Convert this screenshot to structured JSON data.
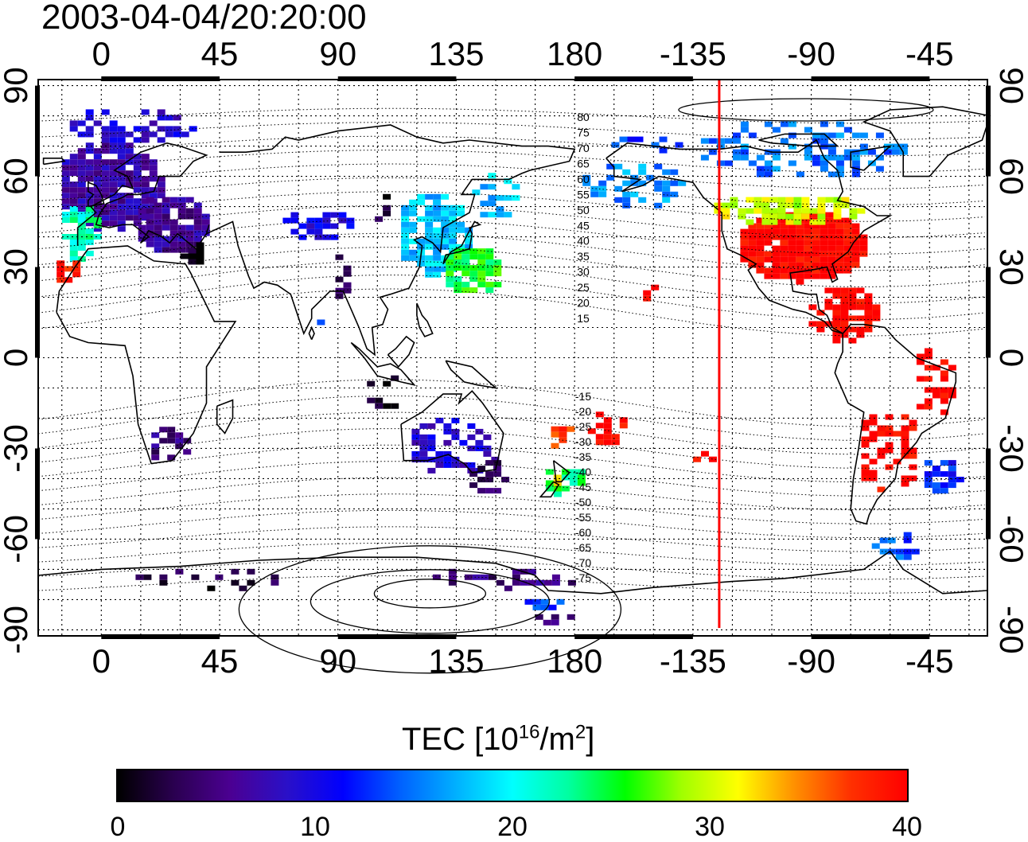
{
  "title": "2003-04-04/20:20:00",
  "map": {
    "lon_range": [
      -24,
      337
    ],
    "lat_range": [
      -92,
      92
    ],
    "lon_ticks": [
      {
        "value": 0,
        "label": "0"
      },
      {
        "value": 45,
        "label": "45"
      },
      {
        "value": 90,
        "label": "90"
      },
      {
        "value": 135,
        "label": "135"
      },
      {
        "value": 180,
        "label": "180"
      },
      {
        "value": 225,
        "label": "-135"
      },
      {
        "value": 270,
        "label": "-90"
      },
      {
        "value": 315,
        "label": "-45"
      }
    ],
    "lat_ticks": [
      {
        "value": 90,
        "label": "90"
      },
      {
        "value": 60,
        "label": "60"
      },
      {
        "value": 30,
        "label": "30"
      },
      {
        "value": 0,
        "label": "0"
      },
      {
        "value": -30,
        "label": "-30"
      },
      {
        "value": -60,
        "label": "-60"
      },
      {
        "value": -90,
        "label": "-90"
      }
    ],
    "grid": true,
    "grid_spacing_lon": 15,
    "grid_spacing_lat": 10,
    "terminator_lon": 235,
    "terminator_color": "#ff0000",
    "contour_labels_north": [
      "80",
      "75",
      "70",
      "65",
      "60",
      "55",
      "50",
      "45",
      "40",
      "35",
      "30",
      "25",
      "20",
      "15"
    ],
    "contour_labels_south": [
      "-15",
      "-20",
      "-25",
      "-30",
      "-35",
      "-40",
      "-45",
      "-50",
      "-55",
      "-60",
      "-65",
      "-70",
      "-75"
    ],
    "coast_color": "#000000"
  },
  "colorbar": {
    "label_main": "TEC  [10",
    "label_exp1": "16",
    "label_mid": "/m",
    "label_exp2": "2",
    "label_end": "]",
    "min": 0,
    "max": 40,
    "ticks": [
      "0",
      "10",
      "20",
      "30",
      "40"
    ],
    "colors": [
      "#000000",
      "#2a0050",
      "#4b0092",
      "#2a10c8",
      "#0000ff",
      "#0060ff",
      "#00b0ff",
      "#00ffff",
      "#00ffa0",
      "#00ff00",
      "#a0ff00",
      "#ffff00",
      "#ff9000",
      "#ff3000",
      "#ff0000"
    ]
  },
  "tec_regions": [
    {
      "lon": 2,
      "lat": 58,
      "rlon": 20,
      "rlat": 15,
      "tec": 7,
      "density": 0.9
    },
    {
      "lon": 25,
      "lat": 45,
      "rlon": 14,
      "rlat": 10,
      "tec": 6,
      "density": 0.85
    },
    {
      "lon": -10,
      "lat": 42,
      "rlon": 8,
      "rlat": 10,
      "tec": 22,
      "density": 0.6
    },
    {
      "lon": -15,
      "lat": 30,
      "rlon": 5,
      "rlat": 4,
      "tec": 38,
      "density": 0.8
    },
    {
      "lon": 33,
      "lat": 36,
      "rlon": 6,
      "rlat": 4,
      "tec": 1,
      "density": 0.9
    },
    {
      "lon": 10,
      "lat": 78,
      "rlon": 25,
      "rlat": 6,
      "tec": 9,
      "density": 0.5
    },
    {
      "lon": 80,
      "lat": 45,
      "rlon": 14,
      "rlat": 5,
      "tec": 10,
      "density": 0.6
    },
    {
      "lon": 125,
      "lat": 42,
      "rlon": 14,
      "rlat": 14,
      "tec": 18,
      "density": 0.75
    },
    {
      "lon": 140,
      "lat": 30,
      "rlon": 12,
      "rlat": 8,
      "tec": 25,
      "density": 0.8
    },
    {
      "lon": 148,
      "lat": 55,
      "rlon": 10,
      "rlat": 8,
      "tec": 18,
      "density": 0.5
    },
    {
      "lon": 90,
      "lat": 28,
      "rlon": 4,
      "rlat": 8,
      "tec": 3,
      "density": 0.5
    },
    {
      "lon": 105,
      "lat": 50,
      "rlon": 4,
      "rlat": 6,
      "tec": 2,
      "density": 0.5
    },
    {
      "lon": 110,
      "lat": -10,
      "rlon": 12,
      "rlat": 6,
      "tec": 1,
      "density": 0.3
    },
    {
      "lon": 133,
      "lat": -28,
      "rlon": 18,
      "rlat": 10,
      "tec": 9,
      "density": 0.5
    },
    {
      "lon": 145,
      "lat": -38,
      "rlon": 8,
      "rlat": 6,
      "tec": 4,
      "density": 0.6
    },
    {
      "lon": 175,
      "lat": -40,
      "rlon": 9,
      "rlat": 5,
      "tec": 24,
      "density": 0.8
    },
    {
      "lon": 172,
      "lat": -38,
      "rlon": 3,
      "rlat": 3,
      "tec": 34,
      "density": 0.9
    },
    {
      "lon": 173,
      "lat": -24,
      "rlon": 5,
      "rlat": 5,
      "tec": 38,
      "density": 0.6
    },
    {
      "lon": 190,
      "lat": -22,
      "rlon": 8,
      "rlat": 6,
      "tec": 40,
      "density": 0.55
    },
    {
      "lon": 24,
      "lat": -28,
      "rlon": 8,
      "rlat": 7,
      "tec": 5,
      "density": 0.7
    },
    {
      "lon": 200,
      "lat": 58,
      "rlon": 20,
      "rlat": 8,
      "tec": 16,
      "density": 0.45
    },
    {
      "lon": 205,
      "lat": 72,
      "rlon": 14,
      "rlat": 3,
      "tec": 13,
      "density": 0.3
    },
    {
      "lon": 265,
      "lat": 70,
      "rlon": 40,
      "rlat": 10,
      "tec": 15,
      "density": 0.45
    },
    {
      "lon": 265,
      "lat": 38,
      "rlon": 25,
      "rlat": 12,
      "tec": 40,
      "density": 0.95
    },
    {
      "lon": 260,
      "lat": 50,
      "rlon": 30,
      "rlat": 5,
      "tec": 30,
      "density": 0.7
    },
    {
      "lon": 280,
      "lat": 15,
      "rlon": 14,
      "rlat": 10,
      "tec": 40,
      "density": 0.6
    },
    {
      "lon": 298,
      "lat": -30,
      "rlon": 12,
      "rlat": 15,
      "tec": 40,
      "density": 0.45
    },
    {
      "lon": 315,
      "lat": -7,
      "rlon": 8,
      "rlat": 12,
      "tec": 40,
      "density": 0.45
    },
    {
      "lon": 318,
      "lat": -38,
      "rlon": 8,
      "rlat": 6,
      "tec": 12,
      "density": 0.8
    },
    {
      "lon": 300,
      "lat": -60,
      "rlon": 10,
      "rlat": 6,
      "tec": 14,
      "density": 0.4
    },
    {
      "lon": 150,
      "lat": -72,
      "rlon": 30,
      "rlat": 4,
      "tec": 5,
      "density": 0.25
    },
    {
      "lon": 40,
      "lat": -72,
      "rlon": 30,
      "rlat": 4,
      "tec": 2,
      "density": 0.25
    },
    {
      "lon": 208,
      "lat": 23,
      "rlon": 5,
      "rlat": 3,
      "tec": 40,
      "density": 0.6
    },
    {
      "lon": 228,
      "lat": -32,
      "rlon": 6,
      "rlat": 3,
      "tec": 40,
      "density": 0.4
    },
    {
      "lon": 170,
      "lat": -85,
      "rlon": 8,
      "rlat": 2,
      "tec": 4,
      "density": 0.8
    },
    {
      "lon": 165,
      "lat": -80,
      "rlon": 10,
      "rlat": 2,
      "tec": 14,
      "density": 0.6
    },
    {
      "lon": 85,
      "lat": 15,
      "rlon": 6,
      "rlat": 5,
      "tec": 12,
      "density": 0.3
    }
  ]
}
